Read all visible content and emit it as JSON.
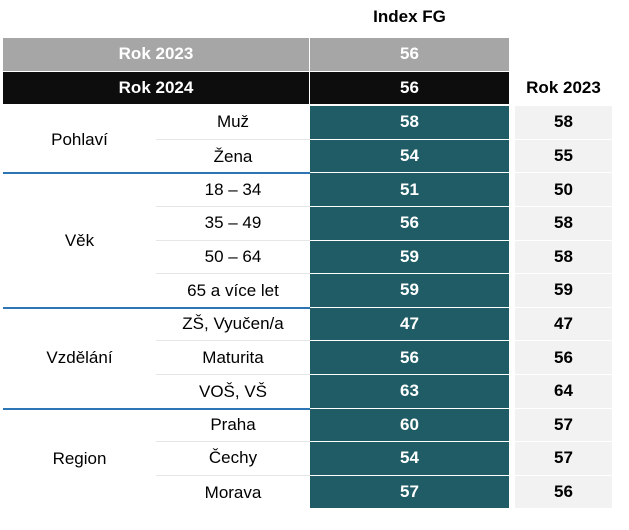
{
  "chart_data": {
    "type": "table",
    "header": {
      "index_label": "Index FG",
      "prev_label": "Rok 2023"
    },
    "totals": [
      {
        "label": "Rok 2023",
        "value": 56
      },
      {
        "label": "Rok 2024",
        "value": 56
      }
    ],
    "groups": [
      {
        "name": "Pohlaví",
        "rows": [
          {
            "label": "Muž",
            "value": 58,
            "prev": 58
          },
          {
            "label": "Žena",
            "value": 54,
            "prev": 55
          }
        ]
      },
      {
        "name": "Věk",
        "rows": [
          {
            "label": "18 – 34",
            "value": 51,
            "prev": 50
          },
          {
            "label": "35 – 49",
            "value": 56,
            "prev": 58
          },
          {
            "label": "50 – 64",
            "value": 59,
            "prev": 58
          },
          {
            "label": "65 a více let",
            "value": 59,
            "prev": 59
          }
        ]
      },
      {
        "name": "Vzdělání",
        "rows": [
          {
            "label": "ZŠ, Vyučen/a",
            "value": 47,
            "prev": 47
          },
          {
            "label": "Maturita",
            "value": 56,
            "prev": 56
          },
          {
            "label": "VOŠ, VŠ",
            "value": 63,
            "prev": 64
          }
        ]
      },
      {
        "name": "Region",
        "rows": [
          {
            "label": "Praha",
            "value": 60,
            "prev": 57
          },
          {
            "label": "Čechy",
            "value": 54,
            "prev": 57
          },
          {
            "label": "Morava",
            "value": 57,
            "prev": 56
          }
        ]
      }
    ],
    "colors": {
      "index_fill": "#1f5c66",
      "total_2023_fill": "#a6a6a6",
      "total_2024_fill": "#0d0d0d",
      "prev_fill": "#f2f2f2",
      "separator": "#2e75b6"
    }
  }
}
